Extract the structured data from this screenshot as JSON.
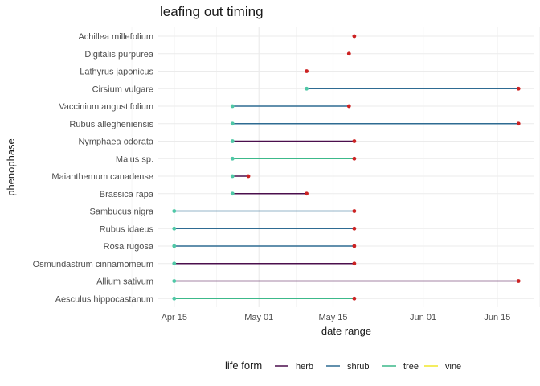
{
  "chart_data": {
    "type": "range-dot",
    "title": "leafing out timing",
    "xlabel": "date range",
    "ylabel": "phenophase",
    "x_ticks": [
      "Apr 15",
      "May 01",
      "May 15",
      "Jun 01",
      "Jun 15"
    ],
    "x_tick_dates": [
      "2023-04-15",
      "2023-05-01",
      "2023-05-15",
      "2023-06-01",
      "2023-06-15"
    ],
    "xlim": [
      "2023-04-12",
      "2023-06-22"
    ],
    "grid": true,
    "legend": {
      "title": "life form",
      "position": "bottom",
      "entries": [
        {
          "name": "herb",
          "color": "#4b0f4d"
        },
        {
          "name": "shrub",
          "color": "#2e6b92"
        },
        {
          "name": "tree",
          "color": "#3cb98a"
        },
        {
          "name": "vine",
          "color": "#f1e72c"
        }
      ]
    },
    "start_color": "#4fc7a6",
    "end_color": "#cc2222",
    "rows": [
      {
        "label": "Achillea millefolium",
        "start": "2023-05-19",
        "end": "2023-05-19",
        "life_form": "shrub"
      },
      {
        "label": "Digitalis purpurea",
        "start": "2023-05-18",
        "end": "2023-05-18",
        "life_form": "herb"
      },
      {
        "label": "Lathyrus japonicus",
        "start": "2023-05-10",
        "end": "2023-05-10",
        "life_form": "herb"
      },
      {
        "label": "Cirsium vulgare",
        "start": "2023-05-10",
        "end": "2023-06-19",
        "life_form": "shrub"
      },
      {
        "label": "Vaccinium angustifolium",
        "start": "2023-04-26",
        "end": "2023-05-18",
        "life_form": "shrub"
      },
      {
        "label": "Rubus allegheniensis",
        "start": "2023-04-26",
        "end": "2023-06-19",
        "life_form": "shrub"
      },
      {
        "label": "Nymphaea odorata",
        "start": "2023-04-26",
        "end": "2023-05-19",
        "life_form": "herb"
      },
      {
        "label": "Malus sp.",
        "start": "2023-04-26",
        "end": "2023-05-19",
        "life_form": "tree"
      },
      {
        "label": "Maianthemum canadense",
        "start": "2023-04-26",
        "end": "2023-04-29",
        "life_form": "herb"
      },
      {
        "label": "Brassica rapa",
        "start": "2023-04-26",
        "end": "2023-05-10",
        "life_form": "herb"
      },
      {
        "label": "Sambucus nigra",
        "start": "2023-04-15",
        "end": "2023-05-19",
        "life_form": "shrub"
      },
      {
        "label": "Rubus idaeus",
        "start": "2023-04-15",
        "end": "2023-05-19",
        "life_form": "shrub"
      },
      {
        "label": "Rosa rugosa",
        "start": "2023-04-15",
        "end": "2023-05-19",
        "life_form": "shrub"
      },
      {
        "label": "Osmundastrum cinnamomeum",
        "start": "2023-04-15",
        "end": "2023-05-19",
        "life_form": "herb"
      },
      {
        "label": "Allium sativum",
        "start": "2023-04-15",
        "end": "2023-06-19",
        "life_form": "herb"
      },
      {
        "label": "Aesculus hippocastanum",
        "start": "2023-04-15",
        "end": "2023-05-19",
        "life_form": "tree"
      }
    ]
  }
}
